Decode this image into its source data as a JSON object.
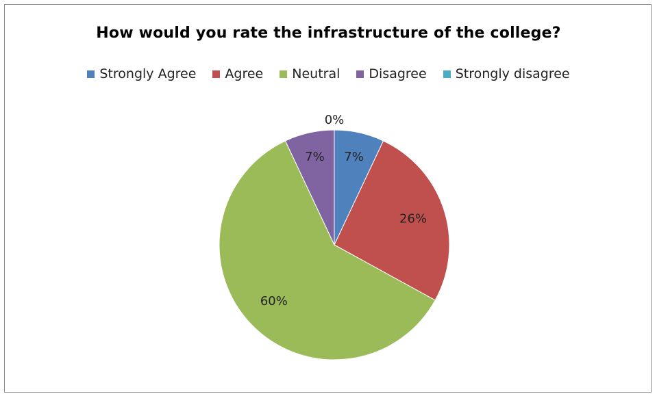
{
  "chart_data": {
    "type": "pie",
    "title": "How would you rate the infrastructure of the college?",
    "legend_position": "top",
    "slices": [
      {
        "name": "Strongly Agree",
        "value": 7,
        "label": "7%",
        "color": "#4f81bd"
      },
      {
        "name": "Agree",
        "value": 26,
        "label": "26%",
        "color": "#c0504d"
      },
      {
        "name": "Neutral",
        "value": 60,
        "label": "60%",
        "color": "#9bbb59"
      },
      {
        "name": "Disagree",
        "value": 7,
        "label": "7%",
        "color": "#8064a2"
      },
      {
        "name": "Strongly disagree",
        "value": 0,
        "label": "0%",
        "color": "#4bacc6"
      }
    ]
  }
}
